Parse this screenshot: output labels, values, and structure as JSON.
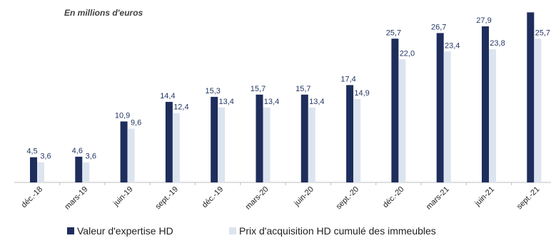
{
  "subtitle": "En millions d'euros",
  "colors": {
    "series_1": "#1e2d5c",
    "series_2": "#dce4ef",
    "axis": "#bfbfbf",
    "value_text": "#263766"
  },
  "chart_data": {
    "type": "bar",
    "categories": [
      "déc.-18",
      "mars-19",
      "juin-19",
      "sept.-19",
      "déc.-19",
      "mars-20",
      "juin-20",
      "sept.-20",
      "déc.-20",
      "mars-21",
      "juin-21",
      "sept.-21"
    ],
    "series": [
      {
        "name": "Valeur d'expertise HD",
        "values": [
          4.5,
          4.6,
          10.9,
          14.4,
          15.3,
          15.7,
          15.7,
          17.4,
          25.7,
          26.7,
          27.9,
          30.4
        ],
        "labels": [
          "4,5",
          "4,6",
          "10,9",
          "14,4",
          "15,3",
          "15,7",
          "15,7",
          "17,4",
          "25,7",
          "26,7",
          "27,9",
          ""
        ]
      },
      {
        "name": "Prix d'acquisition HD cumulé des immeubles",
        "values": [
          3.6,
          3.6,
          9.6,
          12.4,
          13.4,
          13.4,
          13.4,
          14.9,
          22.0,
          23.4,
          23.8,
          25.7
        ],
        "labels": [
          "3,6",
          "3,6",
          "9,6",
          "12,4",
          "13,4",
          "13,4",
          "13,4",
          "14,9",
          "22,0",
          "23,4",
          "23,8",
          "25,7"
        ]
      }
    ],
    "legend_position": "bottom",
    "grid": false
  }
}
